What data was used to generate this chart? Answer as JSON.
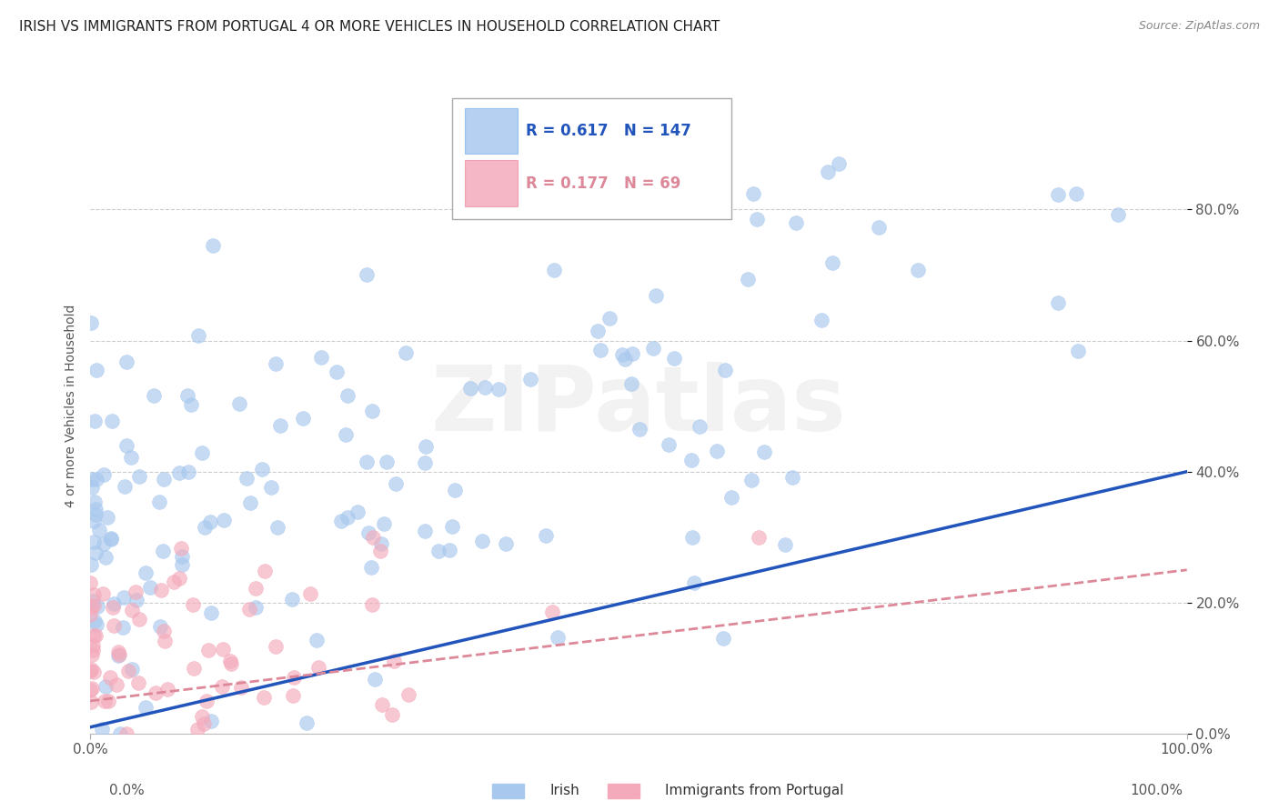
{
  "title": "IRISH VS IMMIGRANTS FROM PORTUGAL 4 OR MORE VEHICLES IN HOUSEHOLD CORRELATION CHART",
  "source": "Source: ZipAtlas.com",
  "ylabel": "4 or more Vehicles in Household",
  "xlim": [
    0.0,
    1.0
  ],
  "ylim": [
    0.0,
    1.0
  ],
  "ytick_labels": [
    "0.0%",
    "20.0%",
    "40.0%",
    "60.0%",
    "80.0%"
  ],
  "ytick_positions": [
    0.0,
    0.2,
    0.4,
    0.6,
    0.8
  ],
  "irish_R": 0.617,
  "irish_N": 147,
  "portugal_R": 0.177,
  "portugal_N": 69,
  "irish_color": "#A8C8EE",
  "portugal_color": "#F4AABB",
  "irish_line_color": "#2255BB",
  "portugal_line_color": "#DD8899",
  "watermark": "ZIPatlas",
  "background_color": "#FFFFFF",
  "title_fontsize": 11,
  "watermark_color": "#DDDDDD",
  "irish_seed": 12,
  "portugal_seed": 99,
  "legend_R_irish_color": "#2255BB",
  "legend_R_port_color": "#DD8899"
}
